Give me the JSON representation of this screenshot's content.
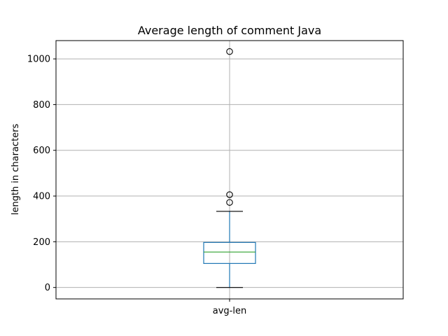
{
  "chart_data": {
    "type": "box",
    "title": "Average length of comment Java",
    "xlabel": "",
    "ylabel": "length in characters",
    "categories": [
      "avg-len"
    ],
    "ylim": [
      -50,
      1080
    ],
    "yticks": [
      0,
      200,
      400,
      600,
      800,
      1000
    ],
    "grid": true,
    "boxes": [
      {
        "category": "avg-len",
        "whisker_low": 0,
        "q1": 105,
        "median": 155,
        "q3": 197,
        "whisker_high": 333,
        "outliers": [
          372,
          406,
          1032
        ]
      }
    ],
    "colors": {
      "box": "#1f77b4",
      "median": "#2ca02c",
      "whisker": "#1f77b4",
      "cap": "#000000",
      "outlier": "#000000",
      "grid": "#b0b0b0"
    }
  }
}
